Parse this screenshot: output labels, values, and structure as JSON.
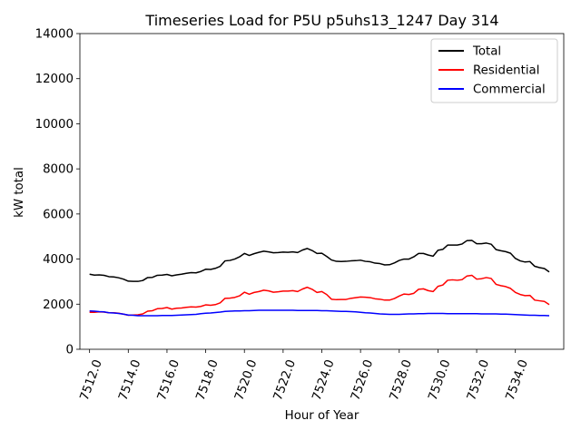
{
  "chart_data": {
    "type": "line",
    "title": "Timeseries Load for P5U p5uhs13_1247  Day 314",
    "xlabel": "Hour of Year",
    "ylabel": "kW total",
    "xlim": [
      7511.5,
      7536.5
    ],
    "ylim": [
      0,
      14000
    ],
    "xticks": [
      7512.0,
      7514.0,
      7516.0,
      7518.0,
      7520.0,
      7522.0,
      7524.0,
      7526.0,
      7528.0,
      7530.0,
      7532.0,
      7534.0
    ],
    "xtick_labels": [
      "7512.0",
      "7514.0",
      "7516.0",
      "7518.0",
      "7520.0",
      "7522.0",
      "7524.0",
      "7526.0",
      "7528.0",
      "7530.0",
      "7532.0",
      "7534.0"
    ],
    "yticks": [
      0,
      2000,
      4000,
      6000,
      8000,
      10000,
      12000,
      14000
    ],
    "ytick_labels": [
      "0",
      "2000",
      "4000",
      "6000",
      "8000",
      "10000",
      "12000",
      "14000"
    ],
    "grid": false,
    "legend_position": "top-right",
    "series": [
      {
        "name": "Total",
        "color": "#000000",
        "x": [
          7512.0,
          7512.25,
          7512.5,
          7512.75,
          7513.0,
          7513.25,
          7513.5,
          7513.75,
          7514.0,
          7514.25,
          7514.5,
          7514.75,
          7515.0,
          7515.25,
          7515.5,
          7515.75,
          7516.0,
          7516.25,
          7516.5,
          7516.75,
          7517.0,
          7517.25,
          7517.5,
          7517.75,
          7518.0,
          7518.25,
          7518.5,
          7518.75,
          7519.0,
          7519.25,
          7519.5,
          7519.75,
          7520.0,
          7520.25,
          7520.5,
          7520.75,
          7521.0,
          7521.25,
          7521.5,
          7521.75,
          7522.0,
          7522.25,
          7522.5,
          7522.75,
          7523.0,
          7523.25,
          7523.5,
          7523.75,
          7524.0,
          7524.25,
          7524.5,
          7524.75,
          7525.0,
          7525.25,
          7525.5,
          7525.75,
          7526.0,
          7526.25,
          7526.5,
          7526.75,
          7527.0,
          7527.25,
          7527.5,
          7527.75,
          7528.0,
          7528.25,
          7528.5,
          7528.75,
          7529.0,
          7529.25,
          7529.5,
          7529.75,
          7530.0,
          7530.25,
          7530.5,
          7530.75,
          7531.0,
          7531.25,
          7531.5,
          7531.75,
          7532.0,
          7532.25,
          7532.5,
          7532.75,
          7533.0,
          7533.25,
          7533.5,
          7533.75,
          7534.0,
          7534.25,
          7534.5,
          7534.75,
          7535.0,
          7535.25,
          7535.5,
          7535.75
        ],
        "values": [
          3330,
          3290,
          3300,
          3280,
          3220,
          3210,
          3170,
          3110,
          3020,
          3010,
          3010,
          3050,
          3180,
          3190,
          3280,
          3290,
          3320,
          3260,
          3300,
          3330,
          3370,
          3400,
          3390,
          3450,
          3550,
          3540,
          3590,
          3680,
          3920,
          3940,
          4000,
          4100,
          4250,
          4160,
          4240,
          4300,
          4350,
          4320,
          4280,
          4290,
          4310,
          4300,
          4320,
          4290,
          4400,
          4470,
          4380,
          4250,
          4260,
          4120,
          3960,
          3900,
          3890,
          3900,
          3920,
          3930,
          3950,
          3900,
          3880,
          3820,
          3800,
          3740,
          3750,
          3830,
          3940,
          4000,
          4000,
          4100,
          4250,
          4250,
          4180,
          4130,
          4390,
          4430,
          4620,
          4620,
          4620,
          4670,
          4820,
          4830,
          4680,
          4680,
          4710,
          4660,
          4420,
          4370,
          4330,
          4260,
          4030,
          3920,
          3870,
          3890,
          3680,
          3620,
          3580,
          3430
        ]
      },
      {
        "name": "Residential",
        "color": "#ff0000",
        "x": [
          7512.0,
          7512.25,
          7512.5,
          7512.75,
          7513.0,
          7513.25,
          7513.5,
          7513.75,
          7514.0,
          7514.25,
          7514.5,
          7514.75,
          7515.0,
          7515.25,
          7515.5,
          7515.75,
          7516.0,
          7516.25,
          7516.5,
          7516.75,
          7517.0,
          7517.25,
          7517.5,
          7517.75,
          7518.0,
          7518.25,
          7518.5,
          7518.75,
          7519.0,
          7519.25,
          7519.5,
          7519.75,
          7520.0,
          7520.25,
          7520.5,
          7520.75,
          7521.0,
          7521.25,
          7521.5,
          7521.75,
          7522.0,
          7522.25,
          7522.5,
          7522.75,
          7523.0,
          7523.25,
          7523.5,
          7523.75,
          7524.0,
          7524.25,
          7524.5,
          7524.75,
          7525.0,
          7525.25,
          7525.5,
          7525.75,
          7526.0,
          7526.25,
          7526.5,
          7526.75,
          7527.0,
          7527.25,
          7527.5,
          7527.75,
          7528.0,
          7528.25,
          7528.5,
          7528.75,
          7529.0,
          7529.25,
          7529.5,
          7529.75,
          7530.0,
          7530.25,
          7530.5,
          7530.75,
          7531.0,
          7531.25,
          7531.5,
          7531.75,
          7532.0,
          7532.25,
          7532.5,
          7532.75,
          7533.0,
          7533.25,
          7533.5,
          7533.75,
          7534.0,
          7534.25,
          7534.5,
          7534.75,
          7535.0,
          7535.25,
          7535.5,
          7535.75
        ],
        "values": [
          1640,
          1640,
          1660,
          1650,
          1620,
          1620,
          1600,
          1560,
          1510,
          1520,
          1530,
          1570,
          1690,
          1710,
          1800,
          1810,
          1850,
          1780,
          1820,
          1830,
          1860,
          1880,
          1870,
          1900,
          1970,
          1950,
          1980,
          2060,
          2260,
          2270,
          2300,
          2370,
          2530,
          2440,
          2520,
          2560,
          2620,
          2590,
          2530,
          2550,
          2580,
          2580,
          2600,
          2560,
          2670,
          2750,
          2660,
          2520,
          2560,
          2430,
          2220,
          2200,
          2210,
          2210,
          2260,
          2290,
          2320,
          2310,
          2290,
          2240,
          2220,
          2180,
          2180,
          2250,
          2360,
          2450,
          2430,
          2480,
          2660,
          2680,
          2600,
          2560,
          2790,
          2850,
          3060,
          3080,
          3060,
          3090,
          3250,
          3280,
          3110,
          3130,
          3180,
          3140,
          2880,
          2820,
          2780,
          2700,
          2520,
          2430,
          2380,
          2390,
          2180,
          2150,
          2120,
          1980
        ]
      },
      {
        "name": "Commercial",
        "color": "#0000ff",
        "x": [
          7512.0,
          7512.25,
          7512.5,
          7512.75,
          7513.0,
          7513.25,
          7513.5,
          7513.75,
          7514.0,
          7514.25,
          7514.5,
          7514.75,
          7515.0,
          7515.25,
          7515.5,
          7515.75,
          7516.0,
          7516.25,
          7516.5,
          7516.75,
          7517.0,
          7517.25,
          7517.5,
          7517.75,
          7518.0,
          7518.25,
          7518.5,
          7518.75,
          7519.0,
          7519.25,
          7519.5,
          7519.75,
          7520.0,
          7520.25,
          7520.5,
          7520.75,
          7521.0,
          7521.25,
          7521.5,
          7521.75,
          7522.0,
          7522.25,
          7522.5,
          7522.75,
          7523.0,
          7523.25,
          7523.5,
          7523.75,
          7524.0,
          7524.25,
          7524.5,
          7524.75,
          7525.0,
          7525.25,
          7525.5,
          7525.75,
          7526.0,
          7526.25,
          7526.5,
          7526.75,
          7527.0,
          7527.25,
          7527.5,
          7527.75,
          7528.0,
          7528.25,
          7528.5,
          7528.75,
          7529.0,
          7529.25,
          7529.5,
          7529.75,
          7530.0,
          7530.25,
          7530.5,
          7530.75,
          7531.0,
          7531.25,
          7531.5,
          7531.75,
          7532.0,
          7532.25,
          7532.5,
          7532.75,
          7533.0,
          7533.25,
          7533.5,
          7533.75,
          7534.0,
          7534.25,
          7534.5,
          7534.75,
          7535.0,
          7535.25,
          7535.5,
          7535.75
        ],
        "values": [
          1700,
          1690,
          1670,
          1660,
          1620,
          1610,
          1590,
          1560,
          1520,
          1510,
          1490,
          1490,
          1490,
          1490,
          1490,
          1500,
          1500,
          1500,
          1510,
          1520,
          1530,
          1540,
          1550,
          1580,
          1600,
          1610,
          1630,
          1650,
          1680,
          1690,
          1700,
          1700,
          1710,
          1710,
          1720,
          1730,
          1730,
          1730,
          1730,
          1730,
          1730,
          1730,
          1730,
          1720,
          1720,
          1720,
          1720,
          1720,
          1710,
          1710,
          1700,
          1690,
          1680,
          1680,
          1670,
          1660,
          1640,
          1620,
          1610,
          1590,
          1570,
          1560,
          1550,
          1550,
          1550,
          1560,
          1570,
          1570,
          1580,
          1580,
          1590,
          1590,
          1590,
          1590,
          1580,
          1580,
          1580,
          1580,
          1580,
          1580,
          1580,
          1570,
          1570,
          1570,
          1570,
          1560,
          1560,
          1550,
          1540,
          1530,
          1520,
          1510,
          1510,
          1500,
          1500,
          1490
        ]
      }
    ]
  }
}
